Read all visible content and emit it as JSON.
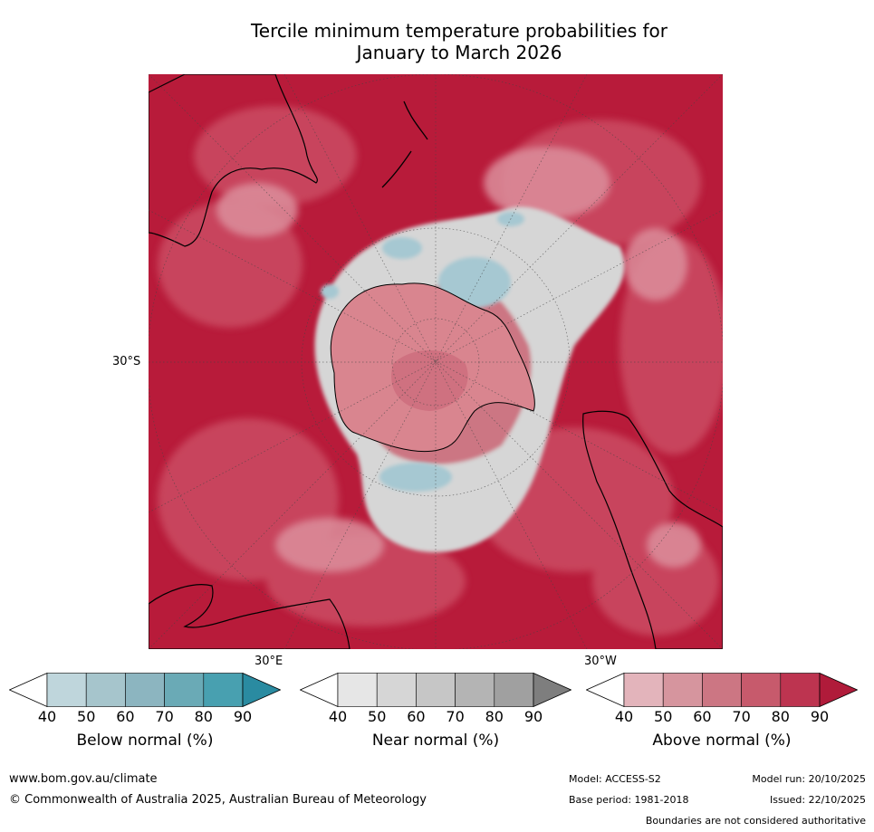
{
  "title": {
    "line1": "Tercile minimum temperature probabilities for",
    "line2": "January to March 2026"
  },
  "map": {
    "projection": "south-polar stereographic",
    "labels": {
      "lat_30s": "30°S",
      "lon_30e": "30°E",
      "lon_30w": "30°W"
    },
    "colors": {
      "above_strong": "#b81b3a",
      "above_mid": "#c9465e",
      "above_light": "#dc8f9c",
      "near_normal": "#d6d6d6",
      "below_normal": "#a6c8d2",
      "coastline": "#000000",
      "boundary": "#888888"
    }
  },
  "legends": [
    {
      "name": "below",
      "title": "Below normal (%)",
      "ticks": [
        "40",
        "50",
        "60",
        "70",
        "80",
        "90"
      ],
      "colors": [
        "#ffffff",
        "#bfd6dc",
        "#a6c5cc",
        "#8cb5c0",
        "#6aaab6",
        "#48a0b0",
        "#2a8ba1"
      ]
    },
    {
      "name": "near",
      "title": "Near normal (%)",
      "ticks": [
        "40",
        "50",
        "60",
        "70",
        "80",
        "90"
      ],
      "colors": [
        "#ffffff",
        "#e6e6e6",
        "#d6d6d6",
        "#c6c6c6",
        "#b4b4b4",
        "#a0a0a0",
        "#7e7e7e"
      ]
    },
    {
      "name": "above",
      "title": "Above normal (%)",
      "ticks": [
        "40",
        "50",
        "60",
        "70",
        "80",
        "90"
      ],
      "colors": [
        "#ffffff",
        "#e3b4bb",
        "#d6959e",
        "#cc7683",
        "#c75a6c",
        "#bd3450",
        "#b01b3a"
      ]
    }
  ],
  "footer": {
    "url": "www.bom.gov.au/climate",
    "copyright": "© Commonwealth of Australia 2025, Australian Bureau of Meteorology",
    "model": "Model: ACCESS-S2",
    "base_period": "Base period: 1981-2018",
    "model_run": "Model run: 20/10/2025",
    "issued": "Issued: 22/10/2025",
    "disclaimer": "Boundaries are not considered authoritative"
  }
}
